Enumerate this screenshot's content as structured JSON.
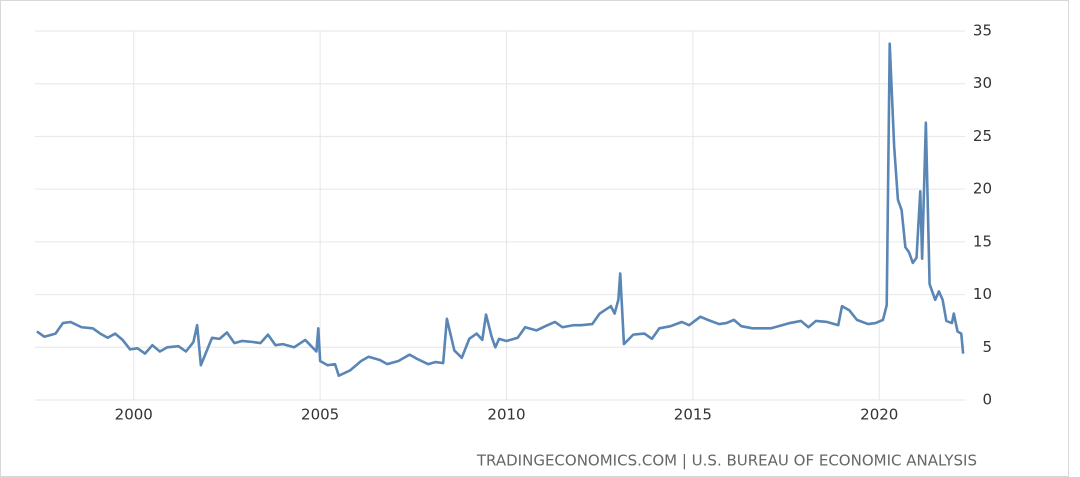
{
  "chart_data": {
    "type": "line",
    "source": "TRADINGECONOMICS.COM | U.S. BUREAU OF ECONOMIC ANALYSIS",
    "xlim": [
      1997.35,
      2022.3
    ],
    "xticks": [
      2000,
      2005,
      2010,
      2015,
      2020
    ],
    "ylim": [
      0,
      35
    ],
    "yticks": [
      0,
      5,
      10,
      15,
      20,
      25,
      30,
      35
    ],
    "grid": true,
    "series": [
      {
        "color": "#5a86b5",
        "x": [
          1997.4,
          1997.6,
          1997.9,
          1998.1,
          1998.3,
          1998.6,
          1998.9,
          1999.1,
          1999.3,
          1999.5,
          1999.7,
          1999.9,
          2000.1,
          2000.3,
          2000.5,
          2000.7,
          2000.9,
          2001.2,
          2001.4,
          2001.6,
          2001.7,
          2001.8,
          2001.95,
          2002.1,
          2002.3,
          2002.5,
          2002.7,
          2002.9,
          2003.2,
          2003.4,
          2003.6,
          2003.8,
          2004.0,
          2004.3,
          2004.6,
          2004.9,
          2004.95,
          2005.0,
          2005.2,
          2005.4,
          2005.5,
          2005.8,
          2006.1,
          2006.3,
          2006.6,
          2006.8,
          2007.1,
          2007.4,
          2007.6,
          2007.9,
          2008.1,
          2008.3,
          2008.4,
          2008.6,
          2008.8,
          2009.0,
          2009.2,
          2009.35,
          2009.45,
          2009.6,
          2009.7,
          2009.8,
          2010.0,
          2010.3,
          2010.5,
          2010.8,
          2011.1,
          2011.3,
          2011.5,
          2011.8,
          2012.0,
          2012.3,
          2012.5,
          2012.8,
          2012.9,
          2013.0,
          2013.05,
          2013.15,
          2013.4,
          2013.7,
          2013.9,
          2014.1,
          2014.4,
          2014.7,
          2014.9,
          2015.2,
          2015.4,
          2015.7,
          2015.9,
          2016.1,
          2016.3,
          2016.6,
          2016.9,
          2017.1,
          2017.4,
          2017.6,
          2017.9,
          2018.1,
          2018.3,
          2018.6,
          2018.9,
          2019.0,
          2019.2,
          2019.4,
          2019.7,
          2019.9,
          2020.1,
          2020.2,
          2020.28,
          2020.4,
          2020.5,
          2020.6,
          2020.7,
          2020.8,
          2020.9,
          2021.0,
          2021.1,
          2021.15,
          2021.25,
          2021.35,
          2021.5,
          2021.6,
          2021.7,
          2021.8,
          2021.95,
          2022.0,
          2022.1,
          2022.2,
          2022.25
        ],
        "values": [
          6.5,
          6.0,
          6.3,
          7.3,
          7.4,
          6.9,
          6.8,
          6.3,
          5.9,
          6.3,
          5.7,
          4.8,
          4.9,
          4.4,
          5.2,
          4.6,
          5.0,
          5.1,
          4.6,
          5.5,
          7.1,
          3.3,
          4.6,
          5.9,
          5.8,
          6.4,
          5.4,
          5.6,
          5.5,
          5.4,
          6.2,
          5.2,
          5.3,
          5.0,
          5.7,
          4.6,
          6.8,
          3.7,
          3.3,
          3.4,
          2.3,
          2.8,
          3.7,
          4.1,
          3.8,
          3.4,
          3.7,
          4.3,
          3.9,
          3.4,
          3.6,
          3.5,
          7.7,
          4.7,
          4.0,
          5.8,
          6.3,
          5.7,
          8.1,
          6.0,
          5.0,
          5.8,
          5.6,
          5.9,
          6.9,
          6.6,
          7.1,
          7.4,
          6.9,
          7.1,
          7.1,
          7.2,
          8.2,
          8.9,
          8.2,
          9.5,
          12.0,
          5.3,
          6.2,
          6.3,
          5.8,
          6.8,
          7.0,
          7.4,
          7.1,
          7.9,
          7.6,
          7.2,
          7.3,
          7.6,
          7.0,
          6.8,
          6.8,
          6.8,
          7.1,
          7.3,
          7.5,
          6.9,
          7.5,
          7.4,
          7.1,
          8.9,
          8.5,
          7.6,
          7.2,
          7.3,
          7.6,
          9.0,
          33.8,
          24.0,
          19.0,
          18.0,
          14.5,
          14.0,
          13.0,
          13.5,
          19.8,
          13.4,
          26.3,
          11.0,
          9.5,
          10.3,
          9.5,
          7.5,
          7.3,
          8.2,
          6.5,
          6.3,
          4.4
        ]
      }
    ]
  }
}
